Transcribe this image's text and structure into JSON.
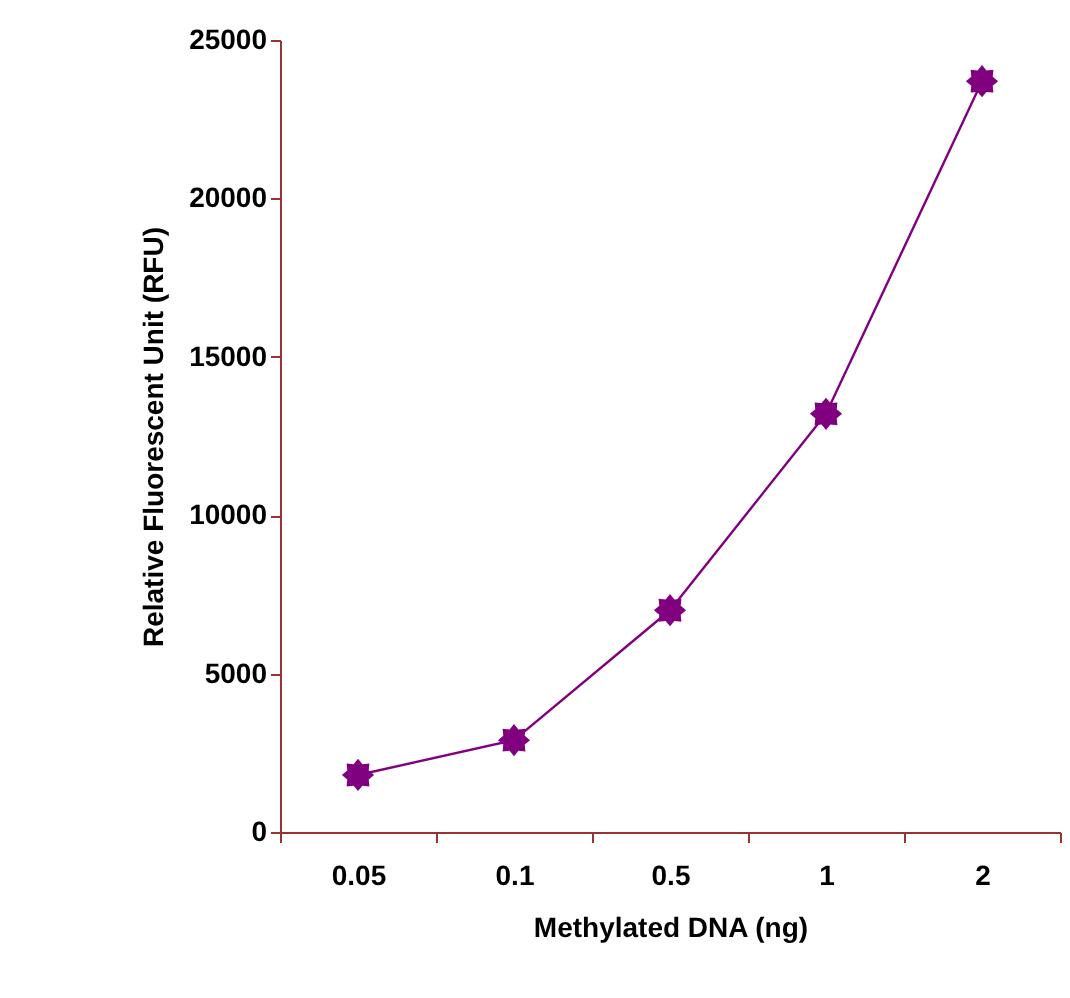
{
  "chart_data": {
    "type": "line",
    "xlabel": "Methylated DNA (ng)",
    "ylabel": "Relative Fluorescent Unit (RFU)",
    "categories": [
      "0.05",
      "0.1",
      "0.5",
      "1",
      "2"
    ],
    "series": [
      {
        "color": "#800080",
        "values": [
          1800,
          2900,
          7000,
          13200,
          23700
        ]
      }
    ],
    "ylim": [
      0,
      25000
    ],
    "yticks": [
      0,
      5000,
      10000,
      15000,
      20000,
      25000
    ],
    "grid": false,
    "marker": "star",
    "line_style": "solid"
  }
}
